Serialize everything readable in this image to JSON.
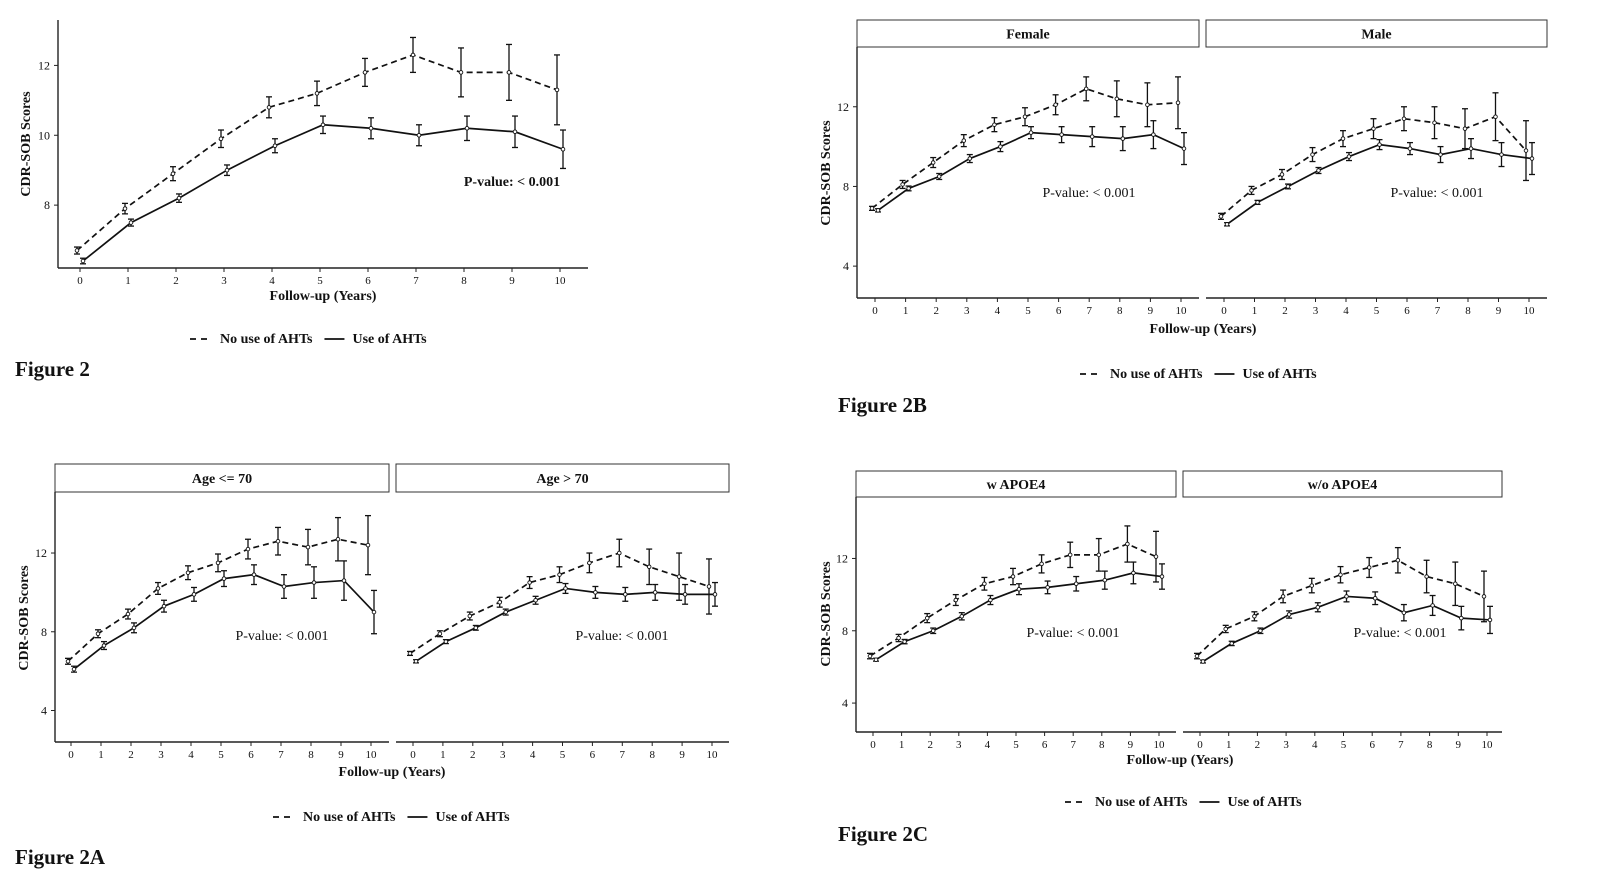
{
  "figures": {
    "fig2_label": "Figure 2",
    "fig2a_label": "Figure 2A",
    "fig2b_label": "Figure 2B",
    "fig2c_label": "Figure 2C"
  },
  "chart_data": [
    {
      "id": "fig2",
      "type": "line",
      "ylabel": "CDR-SOB Scores",
      "xlabel": "Follow-up (Years)",
      "x_ticks": [
        0,
        1,
        2,
        3,
        4,
        5,
        6,
        7,
        8,
        9,
        10
      ],
      "y_ticks": [
        8,
        10,
        12
      ],
      "ylim": [
        6.2,
        13.3
      ],
      "annotation": "P-value: < 0.001",
      "legend": {
        "no_use": "No use of AHTs",
        "use": "Use of AHTs",
        "placement": "bottom"
      },
      "panels": [
        {
          "strip": "",
          "series": [
            {
              "name": "No use of AHTs",
              "style": "dashed",
              "x": [
                0,
                1,
                2,
                3,
                4,
                5,
                6,
                7,
                8,
                9,
                10
              ],
              "values": [
                6.7,
                7.9,
                8.9,
                9.9,
                10.8,
                11.2,
                11.8,
                12.3,
                11.8,
                11.8,
                11.3
              ],
              "err": [
                0.1,
                0.15,
                0.2,
                0.25,
                0.3,
                0.35,
                0.4,
                0.5,
                0.7,
                0.8,
                1.0
              ]
            },
            {
              "name": "Use of AHTs",
              "style": "solid",
              "x": [
                0,
                1,
                2,
                3,
                4,
                5,
                6,
                7,
                8,
                9,
                10
              ],
              "values": [
                6.4,
                7.5,
                8.2,
                9.0,
                9.7,
                10.3,
                10.2,
                10.0,
                10.2,
                10.1,
                9.6
              ],
              "err": [
                0.08,
                0.1,
                0.12,
                0.15,
                0.2,
                0.25,
                0.3,
                0.3,
                0.35,
                0.45,
                0.55
              ]
            }
          ]
        }
      ]
    },
    {
      "id": "fig2a",
      "type": "line",
      "ylabel": "CDR-SOB Scores",
      "xlabel": "Follow-up (Years)",
      "x_ticks": [
        0,
        1,
        2,
        3,
        4,
        5,
        6,
        7,
        8,
        9,
        10
      ],
      "y_ticks": [
        4,
        8,
        12
      ],
      "ylim": [
        2.4,
        15.1
      ],
      "legend": {
        "no_use": "No use of AHTs",
        "use": "Use of AHTs",
        "placement": "bottom"
      },
      "panels": [
        {
          "strip": "Age <= 70",
          "annotation": "P-value: < 0.001",
          "series": [
            {
              "name": "No use of AHTs",
              "style": "dashed",
              "x": [
                0,
                1,
                2,
                3,
                4,
                5,
                6,
                7,
                8,
                9,
                10
              ],
              "values": [
                6.5,
                7.9,
                8.9,
                10.2,
                11.0,
                11.5,
                12.2,
                12.6,
                12.3,
                12.7,
                12.4
              ],
              "err": [
                0.15,
                0.2,
                0.25,
                0.3,
                0.35,
                0.45,
                0.5,
                0.7,
                0.9,
                1.1,
                1.5
              ]
            },
            {
              "name": "Use of AHTs",
              "style": "solid",
              "x": [
                0,
                1,
                2,
                3,
                4,
                5,
                6,
                7,
                8,
                9,
                10
              ],
              "values": [
                6.1,
                7.3,
                8.2,
                9.3,
                9.9,
                10.7,
                10.9,
                10.3,
                10.5,
                10.6,
                9.0
              ],
              "err": [
                0.15,
                0.2,
                0.25,
                0.3,
                0.35,
                0.4,
                0.5,
                0.6,
                0.8,
                1.0,
                1.1
              ]
            }
          ]
        },
        {
          "strip": "Age > 70",
          "annotation": "P-value: < 0.001",
          "series": [
            {
              "name": "No use of AHTs",
              "style": "dashed",
              "x": [
                0,
                1,
                2,
                3,
                4,
                5,
                6,
                7,
                8,
                9,
                10
              ],
              "values": [
                6.9,
                7.9,
                8.8,
                9.5,
                10.5,
                10.9,
                11.5,
                12.0,
                11.3,
                10.8,
                10.3
              ],
              "err": [
                0.1,
                0.15,
                0.2,
                0.25,
                0.3,
                0.4,
                0.5,
                0.7,
                0.9,
                1.2,
                1.4
              ]
            },
            {
              "name": "Use of AHTs",
              "style": "solid",
              "x": [
                0,
                1,
                2,
                3,
                4,
                5,
                6,
                7,
                8,
                9,
                10
              ],
              "values": [
                6.5,
                7.5,
                8.2,
                9.0,
                9.6,
                10.2,
                10.0,
                9.9,
                10.0,
                9.9,
                9.9
              ],
              "err": [
                0.08,
                0.1,
                0.12,
                0.15,
                0.2,
                0.25,
                0.3,
                0.35,
                0.4,
                0.5,
                0.6
              ]
            }
          ]
        }
      ]
    },
    {
      "id": "fig2b",
      "type": "line",
      "ylabel": "CDR-SOB Scores",
      "xlabel": "Follow-up (Years)",
      "x_ticks": [
        0,
        1,
        2,
        3,
        4,
        5,
        6,
        7,
        8,
        9,
        10
      ],
      "y_ticks": [
        4,
        8,
        12
      ],
      "ylim": [
        2.4,
        15.0
      ],
      "legend": {
        "no_use": "No use of AHTs",
        "use": "Use of AHTs",
        "placement": "bottom"
      },
      "panels": [
        {
          "strip": "Female",
          "annotation": "P-value: < 0.001",
          "series": [
            {
              "name": "No use of AHTs",
              "style": "dashed",
              "x": [
                0,
                1,
                2,
                3,
                4,
                5,
                6,
                7,
                8,
                9,
                10
              ],
              "values": [
                6.9,
                8.1,
                9.2,
                10.3,
                11.1,
                11.5,
                12.1,
                12.9,
                12.4,
                12.1,
                12.2
              ],
              "err": [
                0.1,
                0.2,
                0.25,
                0.3,
                0.35,
                0.45,
                0.5,
                0.6,
                0.9,
                1.1,
                1.3
              ]
            },
            {
              "name": "Use of AHTs",
              "style": "solid",
              "x": [
                0,
                1,
                2,
                3,
                4,
                5,
                6,
                7,
                8,
                9,
                10
              ],
              "values": [
                6.8,
                7.9,
                8.5,
                9.4,
                10.0,
                10.7,
                10.6,
                10.5,
                10.4,
                10.6,
                9.9
              ],
              "err": [
                0.08,
                0.12,
                0.15,
                0.2,
                0.25,
                0.3,
                0.4,
                0.5,
                0.6,
                0.7,
                0.8
              ]
            }
          ]
        },
        {
          "strip": "Male",
          "annotation": "P-value: < 0.001",
          "series": [
            {
              "name": "No use of AHTs",
              "style": "dashed",
              "x": [
                0,
                1,
                2,
                3,
                4,
                5,
                6,
                7,
                8,
                9,
                10
              ],
              "values": [
                6.5,
                7.8,
                8.6,
                9.6,
                10.4,
                10.9,
                11.4,
                11.2,
                10.9,
                11.5,
                9.8
              ],
              "err": [
                0.15,
                0.2,
                0.25,
                0.35,
                0.4,
                0.5,
                0.6,
                0.8,
                1.0,
                1.2,
                1.5
              ]
            },
            {
              "name": "Use of AHTs",
              "style": "solid",
              "x": [
                0,
                1,
                2,
                3,
                4,
                5,
                6,
                7,
                8,
                9,
                10
              ],
              "values": [
                6.1,
                7.2,
                8.0,
                8.8,
                9.5,
                10.1,
                9.9,
                9.6,
                9.9,
                9.6,
                9.4
              ],
              "err": [
                0.08,
                0.1,
                0.12,
                0.15,
                0.2,
                0.25,
                0.3,
                0.4,
                0.5,
                0.6,
                0.8
              ]
            }
          ]
        }
      ]
    },
    {
      "id": "fig2c",
      "type": "line",
      "ylabel": "CDR-SOB Scores",
      "xlabel": "Follow-up (Years)",
      "x_ticks": [
        0,
        1,
        2,
        3,
        4,
        5,
        6,
        7,
        8,
        9,
        10
      ],
      "y_ticks": [
        4,
        8,
        12
      ],
      "ylim": [
        2.4,
        15.4
      ],
      "legend": {
        "no_use": "No use of AHTs",
        "use": "Use of AHTs",
        "placement": "bottom"
      },
      "panels": [
        {
          "strip": "w APOE4",
          "annotation": "P-value: < 0.001",
          "series": [
            {
              "name": "No use of AHTs",
              "style": "dashed",
              "x": [
                0,
                1,
                2,
                3,
                4,
                5,
                6,
                7,
                8,
                9,
                10
              ],
              "values": [
                6.6,
                7.6,
                8.7,
                9.7,
                10.6,
                11.0,
                11.7,
                12.2,
                12.2,
                12.8,
                12.1
              ],
              "err": [
                0.15,
                0.2,
                0.25,
                0.3,
                0.35,
                0.45,
                0.5,
                0.7,
                0.9,
                1.0,
                1.4
              ]
            },
            {
              "name": "Use of AHTs",
              "style": "solid",
              "x": [
                0,
                1,
                2,
                3,
                4,
                5,
                6,
                7,
                8,
                9,
                10
              ],
              "values": [
                6.4,
                7.4,
                8.0,
                8.8,
                9.7,
                10.3,
                10.4,
                10.6,
                10.8,
                11.2,
                11.0
              ],
              "err": [
                0.08,
                0.12,
                0.15,
                0.2,
                0.25,
                0.3,
                0.35,
                0.4,
                0.5,
                0.6,
                0.7
              ]
            }
          ]
        },
        {
          "strip": "w/o APOE4",
          "annotation": "P-value: < 0.001",
          "series": [
            {
              "name": "No use of AHTs",
              "style": "dashed",
              "x": [
                0,
                1,
                2,
                3,
                4,
                5,
                6,
                7,
                8,
                9,
                10
              ],
              "values": [
                6.6,
                8.1,
                8.8,
                9.9,
                10.5,
                11.1,
                11.5,
                11.9,
                11.0,
                10.6,
                9.9
              ],
              "err": [
                0.15,
                0.2,
                0.25,
                0.35,
                0.4,
                0.45,
                0.55,
                0.7,
                0.9,
                1.2,
                1.4
              ]
            },
            {
              "name": "Use of AHTs",
              "style": "solid",
              "x": [
                0,
                1,
                2,
                3,
                4,
                5,
                6,
                7,
                8,
                9,
                10
              ],
              "values": [
                6.3,
                7.3,
                8.0,
                8.9,
                9.3,
                9.9,
                9.8,
                9.0,
                9.4,
                8.7,
                8.6
              ],
              "err": [
                0.08,
                0.12,
                0.15,
                0.2,
                0.25,
                0.3,
                0.35,
                0.45,
                0.55,
                0.65,
                0.75
              ]
            }
          ]
        }
      ]
    }
  ]
}
